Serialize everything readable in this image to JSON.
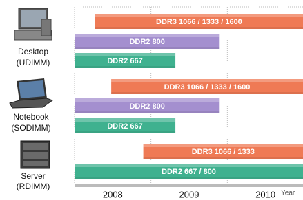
{
  "chart_data": {
    "type": "timeline",
    "x_label": "Year",
    "xlim": [
      2008,
      2011
    ],
    "xticks": [
      {
        "value": 2008.5,
        "label": "2008"
      },
      {
        "value": 2009.5,
        "label": "2009"
      },
      {
        "value": 2010.5,
        "label": "2010"
      }
    ],
    "xgrid": [
      2009,
      2010
    ],
    "groups": [
      {
        "name": "Desktop",
        "module": "(UDIMM)",
        "bars": [
          {
            "label": "DDR3 1066 / 1333 / 1600",
            "start": 2008.27,
            "end": 2011,
            "color": "#ef7a55"
          },
          {
            "label": "DDR2 800",
            "start": 2008,
            "end": 2009.9,
            "color": "#a48fcf"
          },
          {
            "label": "DDR2 667",
            "start": 2008,
            "end": 2009.32,
            "color": "#3fb18f"
          }
        ]
      },
      {
        "name": "Notebook",
        "module": "(SODIMM)",
        "bars": [
          {
            "label": "DDR3 1066 / 1333 / 1600",
            "start": 2008.48,
            "end": 2011,
            "color": "#ef7a55"
          },
          {
            "label": "DDR2 800",
            "start": 2008,
            "end": 2009.9,
            "color": "#a48fcf"
          },
          {
            "label": "DDR2 667",
            "start": 2008,
            "end": 2009.32,
            "color": "#3fb18f"
          }
        ]
      },
      {
        "name": "Server",
        "module": "(RDIMM)",
        "bars": [
          {
            "label": "DDR3 1066 / 1333",
            "start": 2008.9,
            "end": 2011,
            "color": "#ef7a55"
          },
          {
            "label": "DDR2 667 / 800",
            "start": 2008,
            "end": 2011,
            "color": "#3fb18f"
          }
        ]
      }
    ]
  }
}
